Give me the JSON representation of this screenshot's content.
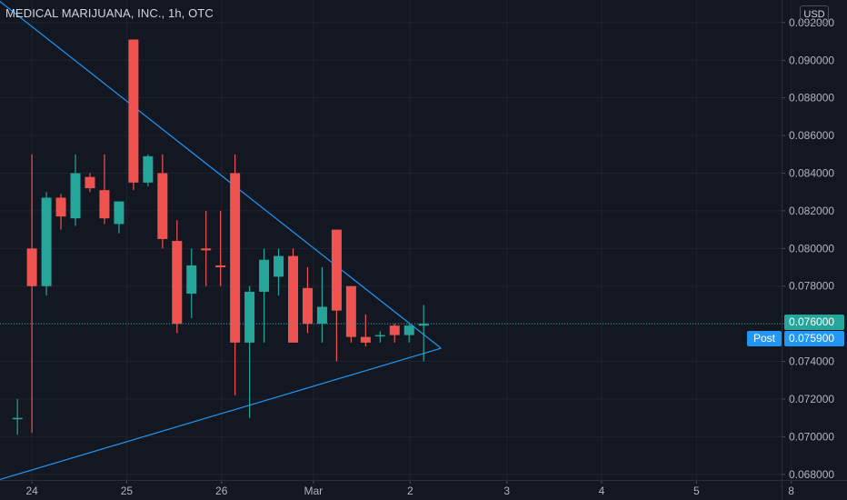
{
  "header": {
    "title": "MEDICAL MARIJUANA, INC., 1h, OTC",
    "currency": "USD"
  },
  "price_scale": {
    "last_price": "0.076000",
    "post_label": "Post",
    "post_price": "0.075900"
  },
  "colors": {
    "background": "#131722",
    "up": "#26a69a",
    "down": "#ef5350",
    "trendline": "#2196f3",
    "grid": "#1f2330",
    "axis_text": "#b2b5be"
  },
  "chart_data": {
    "type": "candlestick",
    "title": "MEDICAL MARIJUANA, INC., 1h, OTC",
    "xlabel": "",
    "ylabel": "",
    "ylim": [
      0.0677,
      0.0932
    ],
    "y_ticks": [
      "0.092000",
      "0.090000",
      "0.088000",
      "0.086000",
      "0.084000",
      "0.082000",
      "0.080000",
      "0.078000",
      "0.076000",
      "0.074000",
      "0.072000",
      "0.070000",
      "0.068000"
    ],
    "x_ticks": [
      "24",
      "25",
      "26",
      "Mar",
      "2",
      "3",
      "4",
      "5",
      "8"
    ],
    "candles": [
      {
        "t": 0.0,
        "o": 0.071,
        "h": 0.072,
        "l": 0.0701,
        "c": 0.071
      },
      {
        "t": 1.5,
        "o": 0.08,
        "h": 0.085,
        "l": 0.0702,
        "c": 0.078
      },
      {
        "t": 3.0,
        "o": 0.078,
        "h": 0.083,
        "l": 0.0775,
        "c": 0.0827
      },
      {
        "t": 4.5,
        "o": 0.0827,
        "h": 0.0829,
        "l": 0.081,
        "c": 0.0817
      },
      {
        "t": 6.0,
        "o": 0.0816,
        "h": 0.085,
        "l": 0.0812,
        "c": 0.084
      },
      {
        "t": 7.5,
        "o": 0.0838,
        "h": 0.084,
        "l": 0.083,
        "c": 0.0832
      },
      {
        "t": 9.0,
        "o": 0.0831,
        "h": 0.085,
        "l": 0.0813,
        "c": 0.0816
      },
      {
        "t": 10.5,
        "o": 0.0813,
        "h": 0.0825,
        "l": 0.0808,
        "c": 0.0825
      },
      {
        "t": 12.0,
        "o": 0.0911,
        "h": 0.0911,
        "l": 0.0831,
        "c": 0.0835
      },
      {
        "t": 13.5,
        "o": 0.0835,
        "h": 0.085,
        "l": 0.0833,
        "c": 0.0849
      },
      {
        "t": 15.0,
        "o": 0.084,
        "h": 0.085,
        "l": 0.08,
        "c": 0.0805
      },
      {
        "t": 16.5,
        "o": 0.0804,
        "h": 0.0815,
        "l": 0.0755,
        "c": 0.076
      },
      {
        "t": 18.0,
        "o": 0.0776,
        "h": 0.08,
        "l": 0.0763,
        "c": 0.0791
      },
      {
        "t": 19.5,
        "o": 0.08,
        "h": 0.082,
        "l": 0.078,
        "c": 0.0799
      },
      {
        "t": 21.0,
        "o": 0.0791,
        "h": 0.082,
        "l": 0.078,
        "c": 0.079
      },
      {
        "t": 22.5,
        "o": 0.084,
        "h": 0.085,
        "l": 0.0722,
        "c": 0.075
      },
      {
        "t": 24.0,
        "o": 0.075,
        "h": 0.078,
        "l": 0.071,
        "c": 0.0777
      },
      {
        "t": 25.5,
        "o": 0.0777,
        "h": 0.08,
        "l": 0.075,
        "c": 0.0794
      },
      {
        "t": 27.0,
        "o": 0.0785,
        "h": 0.08,
        "l": 0.0775,
        "c": 0.0796
      },
      {
        "t": 28.5,
        "o": 0.0796,
        "h": 0.08,
        "l": 0.075,
        "c": 0.075
      },
      {
        "t": 30.0,
        "o": 0.0779,
        "h": 0.079,
        "l": 0.0755,
        "c": 0.076
      },
      {
        "t": 31.5,
        "o": 0.076,
        "h": 0.079,
        "l": 0.075,
        "c": 0.0769
      },
      {
        "t": 33.0,
        "o": 0.081,
        "h": 0.081,
        "l": 0.074,
        "c": 0.0767
      },
      {
        "t": 34.5,
        "o": 0.078,
        "h": 0.078,
        "l": 0.075,
        "c": 0.0753
      },
      {
        "t": 36.0,
        "o": 0.0753,
        "h": 0.0765,
        "l": 0.0748,
        "c": 0.075
      },
      {
        "t": 37.5,
        "o": 0.0754,
        "h": 0.0756,
        "l": 0.075,
        "c": 0.0754
      },
      {
        "t": 39.0,
        "o": 0.0759,
        "h": 0.076,
        "l": 0.075,
        "c": 0.0754
      },
      {
        "t": 40.5,
        "o": 0.0754,
        "h": 0.076,
        "l": 0.075,
        "c": 0.0759
      },
      {
        "t": 42.0,
        "o": 0.0759,
        "h": 0.077,
        "l": 0.074,
        "c": 0.076
      }
    ],
    "trendlines": [
      {
        "name": "upper",
        "x1": -2.0,
        "y1": 0.0932,
        "x2": 43.8,
        "y2": 0.0747
      },
      {
        "name": "lower",
        "x1": -2.0,
        "y1": 0.0677,
        "x2": 43.8,
        "y2": 0.0747
      }
    ],
    "last_price_line": 0.076,
    "x_range": [
      -1.8,
      79.0
    ],
    "x_tick_positions": [
      1.5,
      11.3,
      21.1,
      30.6,
      40.6,
      50.6,
      60.4,
      70.2,
      80.0
    ]
  }
}
